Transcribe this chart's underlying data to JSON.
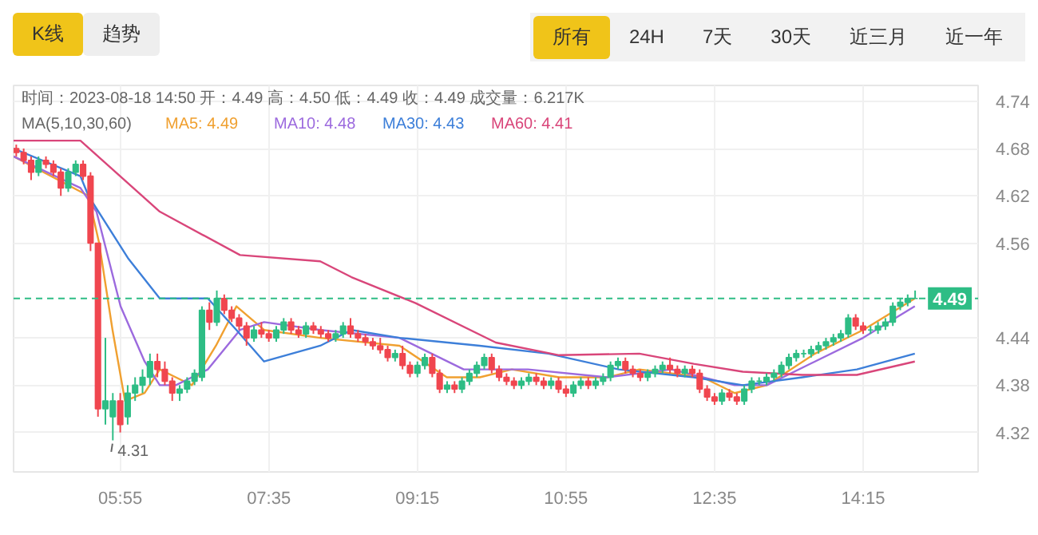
{
  "chart_data": {
    "type": "candlestick",
    "legend": "top",
    "grid": true,
    "annotations": [
      "K线",
      "趋势",
      "所有",
      "24H",
      "7天",
      "30天",
      "近三月",
      "近一年",
      "时间：2023-08-18 14:50   开：4.49   高：4.50   低：4.49   收：4.49   成交量：6.217K",
      "MA(5,10,30,60)",
      {
        "text": "4.31",
        "x": 5.8333,
        "y": 4.31
      }
    ],
    "x": [
      4.75,
      4.8333,
      4.9167,
      5,
      5.0833,
      5.1667,
      5.25,
      5.3333,
      5.4167,
      5.5,
      5.5833,
      5.6667,
      5.75,
      5.8333,
      5.9167,
      6,
      6.0833,
      6.1667,
      6.25,
      6.3333,
      6.4167,
      6.5,
      6.5833,
      6.6667,
      6.75,
      6.8333,
      6.9167,
      7,
      7.0833,
      7.1667,
      7.25,
      7.3333,
      7.4167,
      7.5,
      7.5833,
      7.6667,
      7.75,
      7.8333,
      7.9167,
      8,
      8.0833,
      8.1667,
      8.25,
      8.3333,
      8.4167,
      8.5,
      8.5833,
      8.6667,
      8.75,
      8.8333,
      8.9167,
      9,
      9.0833,
      9.1667,
      9.25,
      9.3333,
      9.4167,
      9.5,
      9.5833,
      9.6667,
      9.75,
      9.8333,
      9.9167,
      10,
      10.0833,
      10.1667,
      10.25,
      10.3333,
      10.4167,
      10.5,
      10.5833,
      10.6667,
      10.75,
      10.8333,
      10.9167,
      11,
      11.0833,
      11.1667,
      11.25,
      11.3333,
      11.4167,
      11.5,
      11.5833,
      11.6667,
      11.75,
      11.8333,
      11.9167,
      12,
      12.0833,
      12.1667,
      12.25,
      12.3333,
      12.4167,
      12.5,
      12.5833,
      12.6667,
      12.75,
      12.8333,
      12.9167,
      13,
      13.0833,
      13.1667,
      13.25,
      13.3333,
      13.4167,
      13.5,
      13.5833,
      13.6667,
      13.75,
      13.8333,
      13.9167,
      14,
      14.0833,
      14.1667,
      14.25,
      14.3333,
      14.4167,
      14.5,
      14.5833,
      14.6667,
      14.75,
      14.8333
    ],
    "ohlc": [
      [
        4.68,
        4.685,
        4.67,
        4.675
      ],
      [
        4.675,
        4.68,
        4.66,
        4.665
      ],
      [
        4.665,
        4.67,
        4.64,
        4.65
      ],
      [
        4.65,
        4.67,
        4.645,
        4.665
      ],
      [
        4.665,
        4.67,
        4.655,
        4.66
      ],
      [
        4.66,
        4.665,
        4.645,
        4.65
      ],
      [
        4.65,
        4.655,
        4.62,
        4.63
      ],
      [
        4.63,
        4.655,
        4.625,
        4.65
      ],
      [
        4.65,
        4.665,
        4.645,
        4.66
      ],
      [
        4.66,
        4.665,
        4.64,
        4.645
      ],
      [
        4.645,
        4.65,
        4.55,
        4.56
      ],
      [
        4.56,
        4.56,
        4.34,
        4.35
      ],
      [
        4.35,
        4.44,
        4.33,
        4.36
      ],
      [
        4.34,
        4.37,
        4.31,
        4.36
      ],
      [
        4.36,
        4.37,
        4.32,
        4.33
      ],
      [
        4.34,
        4.38,
        4.33,
        4.37
      ],
      [
        4.37,
        4.39,
        4.36,
        4.38
      ],
      [
        4.38,
        4.4,
        4.37,
        4.39
      ],
      [
        4.39,
        4.42,
        4.38,
        4.41
      ],
      [
        4.41,
        4.42,
        4.39,
        4.4
      ],
      [
        4.4,
        4.41,
        4.38,
        4.385
      ],
      [
        4.385,
        4.39,
        4.36,
        4.37
      ],
      [
        4.37,
        4.38,
        4.36,
        4.375
      ],
      [
        4.375,
        4.39,
        4.37,
        4.385
      ],
      [
        4.385,
        4.4,
        4.38,
        4.395
      ],
      [
        4.39,
        4.48,
        4.385,
        4.475
      ],
      [
        4.475,
        4.485,
        4.45,
        4.46
      ],
      [
        4.46,
        4.5,
        4.455,
        4.49
      ],
      [
        4.49,
        4.495,
        4.47,
        4.475
      ],
      [
        4.475,
        4.48,
        4.46,
        4.465
      ],
      [
        4.465,
        4.47,
        4.45,
        4.455
      ],
      [
        4.455,
        4.46,
        4.43,
        4.44
      ],
      [
        4.44,
        4.455,
        4.435,
        4.45
      ],
      [
        4.45,
        4.46,
        4.44,
        4.445
      ],
      [
        4.445,
        4.45,
        4.435,
        4.44
      ],
      [
        4.44,
        4.455,
        4.435,
        4.45
      ],
      [
        4.45,
        4.465,
        4.445,
        4.46
      ],
      [
        4.46,
        4.465,
        4.445,
        4.45
      ],
      [
        4.45,
        4.455,
        4.44,
        4.445
      ],
      [
        4.445,
        4.46,
        4.44,
        4.455
      ],
      [
        4.455,
        4.46,
        4.445,
        4.45
      ],
      [
        4.45,
        4.455,
        4.44,
        4.445
      ],
      [
        4.445,
        4.45,
        4.435,
        4.44
      ],
      [
        4.44,
        4.45,
        4.435,
        4.445
      ],
      [
        4.445,
        4.46,
        4.44,
        4.455
      ],
      [
        4.455,
        4.465,
        4.44,
        4.445
      ],
      [
        4.445,
        4.45,
        4.435,
        4.44
      ],
      [
        4.44,
        4.445,
        4.43,
        4.435
      ],
      [
        4.435,
        4.44,
        4.425,
        4.43
      ],
      [
        4.43,
        4.44,
        4.42,
        4.425
      ],
      [
        4.425,
        4.43,
        4.41,
        4.415
      ],
      [
        4.415,
        4.425,
        4.41,
        4.42
      ],
      [
        4.42,
        4.43,
        4.4,
        4.405
      ],
      [
        4.405,
        4.41,
        4.39,
        4.395
      ],
      [
        4.395,
        4.41,
        4.39,
        4.405
      ],
      [
        4.405,
        4.42,
        4.4,
        4.415
      ],
      [
        4.415,
        4.42,
        4.39,
        4.395
      ],
      [
        4.395,
        4.4,
        4.37,
        4.375
      ],
      [
        4.375,
        4.385,
        4.37,
        4.38
      ],
      [
        4.38,
        4.385,
        4.37,
        4.375
      ],
      [
        4.375,
        4.39,
        4.37,
        4.385
      ],
      [
        4.385,
        4.4,
        4.38,
        4.395
      ],
      [
        4.395,
        4.41,
        4.39,
        4.405
      ],
      [
        4.405,
        4.42,
        4.4,
        4.415
      ],
      [
        4.415,
        4.42,
        4.395,
        4.4
      ],
      [
        4.4,
        4.405,
        4.385,
        4.39
      ],
      [
        4.39,
        4.395,
        4.38,
        4.385
      ],
      [
        4.385,
        4.39,
        4.375,
        4.38
      ],
      [
        4.38,
        4.39,
        4.375,
        4.385
      ],
      [
        4.385,
        4.395,
        4.38,
        4.39
      ],
      [
        4.39,
        4.395,
        4.38,
        4.385
      ],
      [
        4.385,
        4.39,
        4.375,
        4.38
      ],
      [
        4.38,
        4.39,
        4.375,
        4.385
      ],
      [
        4.385,
        4.39,
        4.37,
        4.375
      ],
      [
        4.375,
        4.38,
        4.365,
        4.37
      ],
      [
        4.37,
        4.385,
        4.365,
        4.38
      ],
      [
        4.38,
        4.39,
        4.375,
        4.385
      ],
      [
        4.385,
        4.39,
        4.375,
        4.38
      ],
      [
        4.38,
        4.39,
        4.375,
        4.385
      ],
      [
        4.385,
        4.395,
        4.38,
        4.39
      ],
      [
        4.39,
        4.41,
        4.385,
        4.405
      ],
      [
        4.405,
        4.415,
        4.4,
        4.41
      ],
      [
        4.41,
        4.415,
        4.395,
        4.4
      ],
      [
        4.4,
        4.405,
        4.39,
        4.395
      ],
      [
        4.395,
        4.4,
        4.385,
        4.39
      ],
      [
        4.39,
        4.4,
        4.385,
        4.395
      ],
      [
        4.395,
        4.405,
        4.39,
        4.4
      ],
      [
        4.4,
        4.41,
        4.395,
        4.405
      ],
      [
        4.405,
        4.415,
        4.395,
        4.4
      ],
      [
        4.4,
        4.405,
        4.39,
        4.395
      ],
      [
        4.395,
        4.405,
        4.39,
        4.4
      ],
      [
        4.4,
        4.405,
        4.39,
        4.395
      ],
      [
        4.395,
        4.4,
        4.37,
        4.375
      ],
      [
        4.375,
        4.38,
        4.36,
        4.365
      ],
      [
        4.365,
        4.37,
        4.355,
        4.36
      ],
      [
        4.36,
        4.375,
        4.355,
        4.37
      ],
      [
        4.37,
        4.375,
        4.36,
        4.365
      ],
      [
        4.365,
        4.37,
        4.355,
        4.36
      ],
      [
        4.36,
        4.38,
        4.355,
        4.375
      ],
      [
        4.375,
        4.39,
        4.37,
        4.385
      ],
      [
        4.385,
        4.39,
        4.38,
        4.385
      ],
      [
        4.385,
        4.395,
        4.38,
        4.39
      ],
      [
        4.39,
        4.4,
        4.385,
        4.395
      ],
      [
        4.395,
        4.41,
        4.39,
        4.405
      ],
      [
        4.405,
        4.42,
        4.4,
        4.415
      ],
      [
        4.415,
        4.425,
        4.41,
        4.42
      ],
      [
        4.42,
        4.425,
        4.415,
        4.42
      ],
      [
        4.42,
        4.43,
        4.415,
        4.425
      ],
      [
        4.425,
        4.435,
        4.42,
        4.43
      ],
      [
        4.43,
        4.44,
        4.425,
        4.435
      ],
      [
        4.435,
        4.445,
        4.43,
        4.44
      ],
      [
        4.44,
        4.45,
        4.435,
        4.445
      ],
      [
        4.445,
        4.47,
        4.44,
        4.465
      ],
      [
        4.465,
        4.47,
        4.45,
        4.455
      ],
      [
        4.455,
        4.46,
        4.445,
        4.45
      ],
      [
        4.45,
        4.455,
        4.445,
        4.45
      ],
      [
        4.45,
        4.46,
        4.445,
        4.455
      ],
      [
        4.455,
        4.465,
        4.45,
        4.46
      ],
      [
        4.46,
        4.485,
        4.455,
        4.48
      ],
      [
        4.48,
        4.49,
        4.475,
        4.485
      ],
      [
        4.485,
        4.495,
        4.48,
        4.49
      ],
      [
        4.49,
        4.5,
        4.49,
        4.49
      ]
    ],
    "series": [
      {
        "name": "MA5: 4.49",
        "type": "line",
        "color": "#f0a030",
        "x": [
          4.72,
          5.56,
          5.68,
          5.83,
          5.97,
          6.19,
          6.36,
          6.54,
          6.72,
          6.99,
          7.22,
          7.53,
          8.16,
          9.05,
          9.58,
          9.95,
          10.31,
          10.84,
          11.38,
          11.74,
          12.45,
          12.81,
          13.17,
          13.71,
          14.25,
          14.83
        ],
        "values": [
          4.67,
          4.62,
          4.56,
          4.45,
          4.36,
          4.37,
          4.4,
          4.39,
          4.38,
          4.43,
          4.48,
          4.45,
          4.44,
          4.43,
          4.39,
          4.39,
          4.4,
          4.39,
          4.39,
          4.4,
          4.39,
          4.37,
          4.38,
          4.42,
          4.45,
          4.49
        ]
      },
      {
        "name": "MA10: 4.48",
        "type": "line",
        "color": "#9c6ade",
        "x": [
          4.72,
          5.47,
          5.65,
          5.92,
          6.19,
          6.36,
          6.54,
          6.9,
          7.26,
          7.53,
          8.16,
          9.05,
          9.77,
          10.49,
          11.38,
          12.1,
          12.81,
          13.17,
          13.71,
          14.25,
          14.83
        ],
        "values": [
          4.67,
          4.63,
          4.6,
          4.48,
          4.41,
          4.38,
          4.38,
          4.4,
          4.45,
          4.46,
          4.45,
          4.44,
          4.4,
          4.4,
          4.39,
          4.4,
          4.38,
          4.38,
          4.41,
          4.44,
          4.48
        ]
      },
      {
        "name": "MA30: 4.43",
        "type": "line",
        "color": "#3d7fd9",
        "x": [
          4.72,
          5.47,
          5.56,
          6.01,
          6.36,
          6.9,
          7.22,
          7.53,
          8.16,
          8.51,
          9.05,
          9.95,
          10.72,
          11.51,
          12.35,
          12.9,
          13.57,
          14.18,
          14.83
        ],
        "values": [
          4.68,
          4.645,
          4.62,
          4.54,
          4.49,
          4.49,
          4.45,
          4.41,
          4.43,
          4.45,
          4.44,
          4.43,
          4.42,
          4.4,
          4.39,
          4.38,
          4.39,
          4.4,
          4.42
        ]
      },
      {
        "name": "MA60: 4.41",
        "type": "line",
        "color": "#d9467a",
        "x": [
          4.72,
          5.47,
          6.36,
          7.26,
          8.16,
          8.51,
          9.23,
          10.13,
          10.84,
          11.74,
          12.35,
          12.9,
          13.57,
          14.18,
          14.83
        ],
        "values": [
          4.69,
          4.69,
          4.6,
          4.545,
          4.537,
          4.517,
          4.484,
          4.434,
          4.418,
          4.42,
          4.407,
          4.397,
          4.393,
          4.393,
          4.41
        ]
      }
    ],
    "xlim": [
      4.72,
      15.54
    ],
    "ylim": [
      4.27,
      4.76
    ],
    "xticks": [
      {
        "value": 5.9167,
        "label": "05:55"
      },
      {
        "value": 7.5833,
        "label": "07:35"
      },
      {
        "value": 9.25,
        "label": "09:15"
      },
      {
        "value": 10.9167,
        "label": "10:55"
      },
      {
        "value": 12.5833,
        "label": "12:35"
      },
      {
        "value": 14.25,
        "label": "14:15"
      }
    ],
    "yticks": [
      4.32,
      4.38,
      4.44,
      4.56,
      4.62,
      4.68,
      4.74
    ],
    "ref_lines": [
      {
        "axis": "y",
        "value": 4.49,
        "label": "4.49",
        "color": "#2ebd85",
        "line_style": "dashed"
      }
    ]
  }
}
